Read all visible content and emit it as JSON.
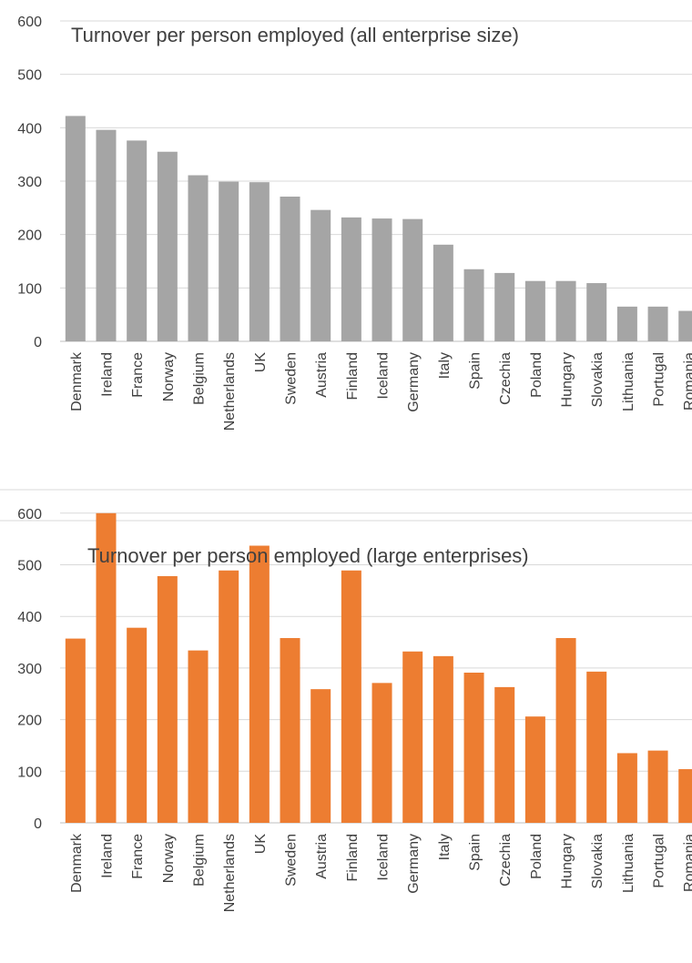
{
  "chart_data": [
    {
      "type": "bar",
      "title": "Turnover per person employed (all enterprise size)",
      "xlabel": "",
      "ylabel": "",
      "ylim": [
        0,
        600
      ],
      "yticks": [
        0,
        100,
        200,
        300,
        400,
        500,
        600
      ],
      "grid": true,
      "legend": "none",
      "color": "#a5a5a5",
      "categories": [
        "Denmark",
        "Ireland",
        "France",
        "Norway",
        "Belgium",
        "Netherlands",
        "UK",
        "Sweden",
        "Austria",
        "Finland",
        "Iceland",
        "Germany",
        "Italy",
        "Spain",
        "Czechia",
        "Poland",
        "Hungary",
        "Slovakia",
        "Lithuania",
        "Portugal",
        "Romania"
      ],
      "values": [
        422,
        396,
        376,
        355,
        311,
        299,
        298,
        271,
        246,
        232,
        230,
        229,
        181,
        135,
        128,
        113,
        113,
        109,
        65,
        65,
        57
      ]
    },
    {
      "type": "bar",
      "title": "Turnover per person employed (large enterprises)",
      "xlabel": "",
      "ylabel": "",
      "ylim": [
        0,
        600
      ],
      "yticks": [
        0,
        100,
        200,
        300,
        400,
        500,
        600
      ],
      "grid": true,
      "legend": "none",
      "color": "#ed7d31",
      "categories": [
        "Denmark",
        "Ireland",
        "France",
        "Norway",
        "Belgium",
        "Netherlands",
        "UK",
        "Sweden",
        "Austria",
        "Finland",
        "Iceland",
        "Germany",
        "Italy",
        "Spain",
        "Czechia",
        "Poland",
        "Hungary",
        "Slovakia",
        "Lithuania",
        "Portugal",
        "Romania"
      ],
      "values": [
        357,
        600,
        378,
        478,
        334,
        489,
        537,
        358,
        259,
        489,
        271,
        332,
        323,
        291,
        263,
        206,
        358,
        293,
        135,
        140,
        104
      ]
    }
  ]
}
